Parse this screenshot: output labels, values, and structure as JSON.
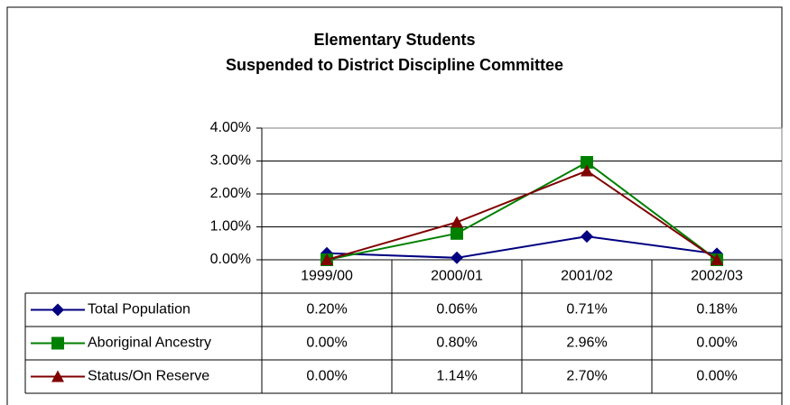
{
  "chart_data": {
    "type": "line",
    "title": [
      "Elementary Students",
      "Suspended to District Discipline Committee"
    ],
    "categories": [
      "1999/00",
      "2000/01",
      "2001/02",
      "2002/03"
    ],
    "series": [
      {
        "name": "Total Population",
        "color": "#000080",
        "marker": "diamond",
        "values": [
          0.2,
          0.06,
          0.71,
          0.18
        ],
        "value_labels": [
          "0.20%",
          "0.06%",
          "0.71%",
          "0.18%"
        ]
      },
      {
        "name": "Aboriginal Ancestry",
        "color": "#008000",
        "marker": "square",
        "values": [
          0.0,
          0.8,
          2.96,
          0.0
        ],
        "value_labels": [
          "0.00%",
          "0.80%",
          "2.96%",
          "0.00%"
        ]
      },
      {
        "name": "Status/On Reserve",
        "color": "#800000",
        "marker": "triangle",
        "values": [
          0.0,
          1.14,
          2.7,
          0.0
        ],
        "value_labels": [
          "0.00%",
          "1.14%",
          "2.70%",
          "0.00%"
        ]
      }
    ],
    "ylim": [
      0,
      4
    ],
    "yticks": [
      {
        "value": 0,
        "label": "0.00%"
      },
      {
        "value": 1,
        "label": "1.00%"
      },
      {
        "value": 2,
        "label": "2.00%"
      },
      {
        "value": 3,
        "label": "3.00%"
      },
      {
        "value": 4,
        "label": "4.00%"
      }
    ],
    "grid": true
  }
}
